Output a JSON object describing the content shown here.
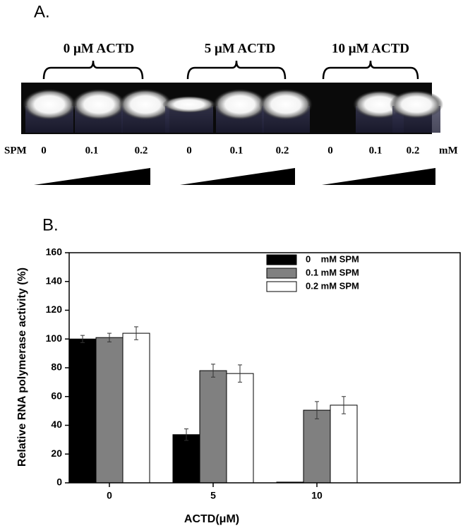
{
  "panel_a": {
    "title": "A.",
    "groups": [
      "0 μM ACTD",
      "5 μM ACTD",
      "10 μM ACTD"
    ],
    "row_label": "SPM",
    "lanes": [
      "0",
      "0.1",
      "0.2",
      "0",
      "0.1",
      "0.2",
      "0",
      "0.1",
      "0.2"
    ],
    "unit": "mM"
  },
  "chart_data": {
    "type": "bar",
    "title": "B.",
    "y_label": "Relative RNA polymerase activity (%)",
    "x_label": "ACTD(μM)",
    "categories": [
      "0",
      "5",
      "10"
    ],
    "series": [
      {
        "name": "0    mM SPM",
        "color": "#000000",
        "values": [
          100,
          33.5,
          0.5
        ],
        "errors": [
          2.5,
          4,
          null
        ]
      },
      {
        "name": "0.1 mM SPM",
        "color": "#808080",
        "values": [
          101,
          78,
          50.5
        ],
        "errors": [
          3,
          4.5,
          6
        ]
      },
      {
        "name": "0.2 mM SPM",
        "color": "#ffffff",
        "values": [
          104,
          76,
          54
        ],
        "errors": [
          4.5,
          6,
          6
        ]
      }
    ],
    "ylim": [
      0,
      160
    ],
    "yticks": [
      0,
      20,
      40,
      60,
      80,
      100,
      120,
      140,
      160
    ]
  }
}
